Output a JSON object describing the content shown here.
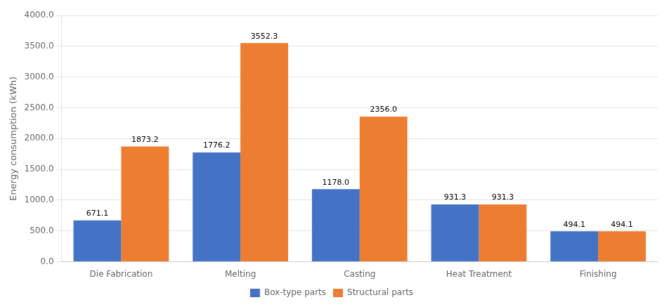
{
  "chart_data": {
    "type": "bar",
    "categories": [
      "Die Fabrication",
      "Melting",
      "Casting",
      "Heat Treatment",
      "Finishing"
    ],
    "series": [
      {
        "name": "Box-type parts",
        "color": "#4472C4",
        "values": [
          671.1,
          1776.2,
          1178.0,
          931.3,
          494.1
        ],
        "value_labels": [
          "671.1",
          "1776.2",
          "1178.0",
          "931.3",
          "494.1"
        ]
      },
      {
        "name": "Structural parts",
        "color": "#ED7D31",
        "values": [
          1873.2,
          3552.3,
          2356.0,
          931.3,
          494.1
        ],
        "value_labels": [
          "1873.2",
          "3552.3",
          "2356.0",
          "931.3",
          "494.1"
        ]
      }
    ],
    "ylabel": "Energy consumption (kWh)",
    "ylim": [
      0,
      4000
    ],
    "yticks": [
      {
        "value": 0.0,
        "label": "0.0"
      },
      {
        "value": 500.0,
        "label": "500.0"
      },
      {
        "value": 1000.0,
        "label": "1000.0"
      },
      {
        "value": 1500.0,
        "label": "1500.0"
      },
      {
        "value": 2000.0,
        "label": "2000.0"
      },
      {
        "value": 2500.0,
        "label": "2500.0"
      },
      {
        "value": 3000.0,
        "label": "3000.0"
      },
      {
        "value": 3500.0,
        "label": "3500.0"
      },
      {
        "value": 4000.0,
        "label": "4000.0"
      }
    ],
    "grid": true,
    "legend": "bottom",
    "data_labels": true
  }
}
